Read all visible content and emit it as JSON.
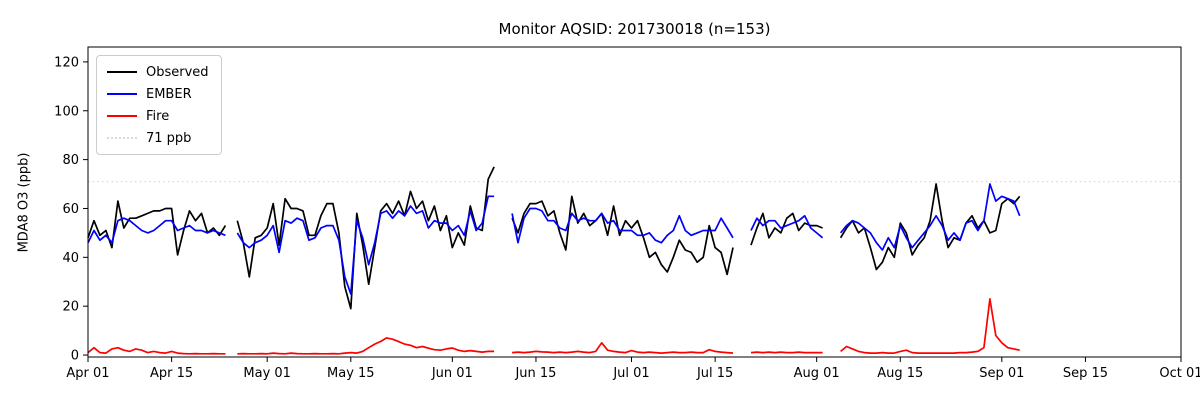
{
  "figure": {
    "title": "Monitor AQSID: 201730018 (n=153)",
    "ylabel": "MDA8 O3 (ppb)"
  },
  "chart_data": {
    "type": "line",
    "title": "Monitor AQSID: 201730018 (n=153)",
    "xlabel": "",
    "ylabel": "MDA8 O3 (ppb)",
    "x_unit": "days since Apr 01 (daily values, Apr 01 - Sep 04; null = missing day)",
    "xlim": [
      0,
      183
    ],
    "ylim": [
      -0.8,
      126.1
    ],
    "yticks": [
      0,
      20,
      40,
      60,
      80,
      100,
      120
    ],
    "xticks": [
      {
        "day": 0,
        "label": "Apr 01"
      },
      {
        "day": 14,
        "label": "Apr 15"
      },
      {
        "day": 30,
        "label": "May 01"
      },
      {
        "day": 44,
        "label": "May 15"
      },
      {
        "day": 61,
        "label": "Jun 01"
      },
      {
        "day": 75,
        "label": "Jun 15"
      },
      {
        "day": 91,
        "label": "Jul 01"
      },
      {
        "day": 105,
        "label": "Jul 15"
      },
      {
        "day": 122,
        "label": "Aug 01"
      },
      {
        "day": 136,
        "label": "Aug 15"
      },
      {
        "day": 153,
        "label": "Sep 01"
      },
      {
        "day": 167,
        "label": "Sep 15"
      },
      {
        "day": 183,
        "label": "Oct 01"
      }
    ],
    "grid": false,
    "threshold": {
      "value": 71,
      "label": "71 ppb",
      "color": "#d8d8d8",
      "style": "dotted"
    },
    "legend": [
      "Observed",
      "EMBER",
      "Fire",
      "71 ppb"
    ],
    "legend_position": "upper left",
    "series": [
      {
        "name": "Observed",
        "color": "#000000",
        "values": [
          48,
          55,
          49,
          51,
          44,
          63,
          52,
          56,
          56,
          57,
          58,
          59,
          59,
          60,
          60,
          41,
          51,
          59,
          55,
          58,
          50,
          52,
          49,
          53,
          null,
          55,
          46,
          32,
          48,
          49,
          52,
          62,
          45,
          64,
          60,
          60,
          59,
          49,
          49,
          57,
          62,
          62,
          50,
          28,
          19,
          58,
          45,
          29,
          44,
          59,
          62,
          58,
          63,
          57,
          67,
          60,
          63,
          55,
          61,
          51,
          57,
          44,
          50,
          45,
          61,
          52,
          51,
          72,
          77,
          null,
          null,
          56,
          50,
          58,
          62,
          62,
          63,
          57,
          59,
          50,
          43,
          65,
          54,
          58,
          53,
          55,
          58,
          49,
          61,
          49,
          55,
          52,
          55,
          48,
          40,
          42,
          37,
          34,
          40,
          47,
          43,
          42,
          38,
          40,
          53,
          44,
          42,
          33,
          44,
          null,
          null,
          45,
          52,
          58,
          48,
          52,
          50,
          56,
          58,
          51,
          54,
          53,
          53,
          52,
          null,
          null,
          48,
          52,
          55,
          50,
          52,
          44,
          35,
          38,
          44,
          40,
          54,
          50,
          41,
          45,
          48,
          55,
          70,
          55,
          44,
          48,
          47,
          54,
          57,
          52,
          55,
          50,
          51,
          62,
          64,
          62,
          65
        ]
      },
      {
        "name": "EMBER",
        "color": "#0000ff",
        "values": [
          46,
          51,
          47,
          49,
          46,
          55,
          56,
          55,
          53,
          51,
          50,
          51,
          53,
          55,
          55,
          51,
          52,
          53,
          51,
          51,
          50,
          51,
          50,
          49,
          null,
          50,
          46,
          44,
          46,
          47,
          49,
          53,
          42,
          55,
          54,
          56,
          55,
          47,
          48,
          52,
          53,
          53,
          47,
          32,
          25,
          55,
          48,
          37,
          46,
          58,
          59,
          56,
          59,
          57,
          61,
          58,
          59,
          52,
          55,
          54,
          54,
          51,
          53,
          49,
          59,
          51,
          54,
          65,
          65,
          null,
          null,
          58,
          46,
          56,
          60,
          60,
          59,
          55,
          55,
          52,
          51,
          58,
          55,
          56,
          55,
          55,
          58,
          54,
          55,
          51,
          51,
          51,
          49,
          49,
          50,
          47,
          46,
          49,
          51,
          57,
          51,
          49,
          50,
          51,
          51,
          51,
          56,
          52,
          48,
          null,
          null,
          51,
          56,
          53,
          55,
          55,
          52,
          53,
          54,
          55,
          57,
          52,
          50,
          48,
          null,
          null,
          50,
          53,
          55,
          54,
          52,
          50,
          46,
          43,
          48,
          44,
          53,
          48,
          44,
          47,
          50,
          53,
          57,
          53,
          47,
          50,
          47,
          54,
          55,
          51,
          55,
          70,
          63,
          65,
          64,
          63,
          57
        ]
      },
      {
        "name": "Fire",
        "color": "#ff0000",
        "values": [
          1,
          3,
          1,
          0.8,
          2.5,
          3,
          2,
          1.5,
          2.5,
          2,
          1,
          1.5,
          1,
          0.8,
          1.5,
          0.8,
          0.6,
          0.5,
          0.6,
          0.5,
          0.5,
          0.6,
          0.5,
          0.5,
          null,
          0.5,
          0.6,
          0.5,
          0.5,
          0.6,
          0.5,
          0.8,
          0.6,
          0.5,
          0.8,
          0.6,
          0.5,
          0.5,
          0.6,
          0.5,
          0.5,
          0.6,
          0.5,
          0.8,
          1,
          0.8,
          1.5,
          3,
          4.5,
          5.6,
          7,
          6.5,
          5.5,
          4.5,
          4,
          3,
          3.5,
          2.8,
          2.2,
          2,
          2.5,
          2.9,
          2,
          1.5,
          1.8,
          1.5,
          1.2,
          1.5,
          1.5,
          null,
          null,
          1,
          1.2,
          1,
          1.2,
          1.5,
          1.3,
          1.2,
          1,
          1.2,
          1,
          1.2,
          1.5,
          1.2,
          1,
          1.5,
          5,
          2,
          1.5,
          1.2,
          1,
          1.8,
          1.2,
          1,
          1.2,
          1,
          0.8,
          1,
          1.2,
          1,
          1,
          1.2,
          1,
          1,
          2.2,
          1.5,
          1.2,
          1,
          0.8,
          null,
          null,
          1,
          1.2,
          1,
          1.2,
          1,
          1.2,
          1,
          1,
          1.2,
          1,
          1,
          1,
          1,
          null,
          null,
          1.5,
          3.5,
          2.5,
          1.5,
          1,
          0.8,
          0.8,
          1,
          0.8,
          0.8,
          1.5,
          2,
          1,
          0.8,
          0.8,
          0.8,
          0.8,
          0.8,
          0.8,
          0.8,
          1,
          1,
          1.2,
          1.5,
          3,
          23,
          8,
          5,
          3,
          2.5,
          2
        ]
      }
    ]
  }
}
